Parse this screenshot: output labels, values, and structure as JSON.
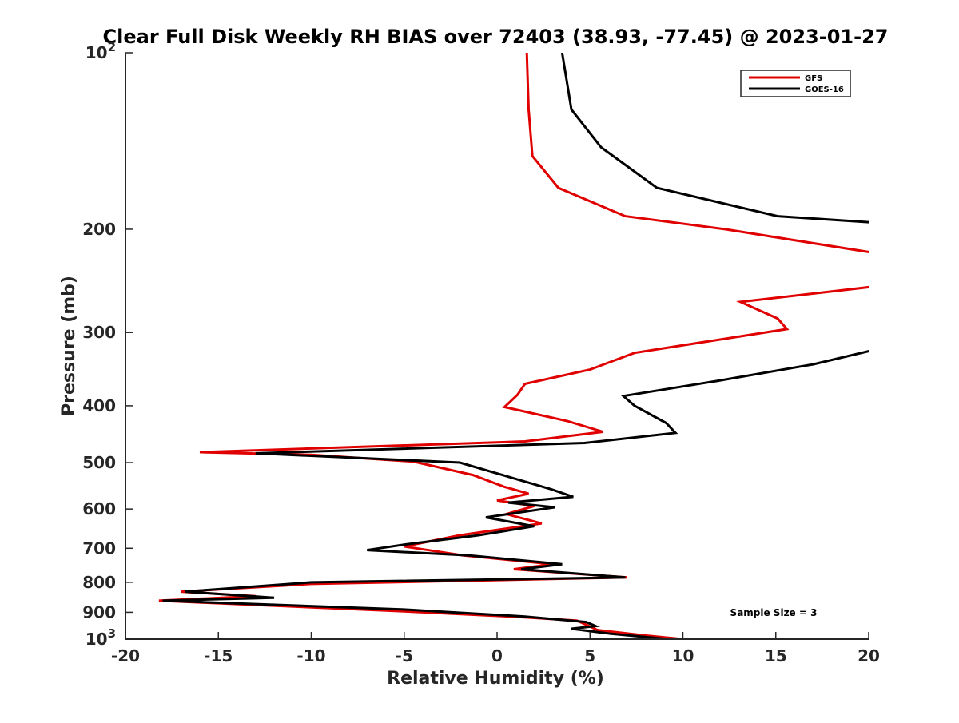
{
  "chart_data": {
    "type": "line",
    "title": "Clear Full Disk Weekly RH BIAS over 72403 (38.93, -77.45) @ 2023-01-27",
    "xlabel": "Relative Humidity (%)",
    "ylabel": "Pressure (mb)",
    "xlim": [
      -20,
      20
    ],
    "ylim": [
      100,
      1000
    ],
    "yscale": "log",
    "y_reversed": true,
    "grid": false,
    "legend_position": "top-right",
    "xticks": [
      -20,
      -15,
      -10,
      -5,
      0,
      5,
      10,
      15,
      20
    ],
    "xtick_labels": [
      "-20",
      "-15",
      "-10",
      "-5",
      "0",
      "5",
      "10",
      "15",
      "20"
    ],
    "yticks": [
      100,
      200,
      300,
      400,
      500,
      600,
      700,
      800,
      900,
      1000
    ],
    "ytick_labels": [
      {
        "base": "10",
        "exp": "2"
      },
      {
        "base": "200",
        "exp": ""
      },
      {
        "base": "300",
        "exp": ""
      },
      {
        "base": "400",
        "exp": ""
      },
      {
        "base": "500",
        "exp": ""
      },
      {
        "base": "600",
        "exp": ""
      },
      {
        "base": "700",
        "exp": ""
      },
      {
        "base": "800",
        "exp": ""
      },
      {
        "base": "900",
        "exp": ""
      },
      {
        "base": "10",
        "exp": "3"
      }
    ],
    "annotation": "Sample Size = 3",
    "series": [
      {
        "name": "GFS",
        "color": "#e00000",
        "points": [
          [
            1.6,
            100
          ],
          [
            1.7,
            125
          ],
          [
            1.9,
            150
          ],
          [
            3.3,
            170
          ],
          [
            6.9,
            190
          ],
          [
            12.3,
            200
          ],
          [
            20.5,
            220
          ],
          [
            20.5,
            250
          ],
          [
            13.1,
            266
          ],
          [
            15.1,
            284
          ],
          [
            15.6,
            296
          ],
          [
            7.4,
            325
          ],
          [
            5.0,
            347
          ],
          [
            1.5,
            367
          ],
          [
            1.1,
            383
          ],
          [
            0.4,
            402
          ],
          [
            3.8,
            425
          ],
          [
            5.7,
            443
          ],
          [
            1.5,
            460
          ],
          [
            -16.0,
            480
          ],
          [
            -10.0,
            485
          ],
          [
            -4.5,
            498
          ],
          [
            -1.3,
            525
          ],
          [
            0.4,
            550
          ],
          [
            1.7,
            565
          ],
          [
            0.0,
            580
          ],
          [
            2.0,
            593
          ],
          [
            0.5,
            612
          ],
          [
            2.4,
            635
          ],
          [
            -2.0,
            665
          ],
          [
            -5.0,
            695
          ],
          [
            -1.8,
            720
          ],
          [
            3.0,
            745
          ],
          [
            0.9,
            760
          ],
          [
            7.0,
            785
          ],
          [
            -10.0,
            805
          ],
          [
            -17.0,
            830
          ],
          [
            -13.0,
            845
          ],
          [
            -18.2,
            860
          ],
          [
            -5.0,
            897
          ],
          [
            1.5,
            918
          ],
          [
            4.3,
            930
          ],
          [
            4.8,
            945
          ],
          [
            5.4,
            965
          ],
          [
            7.9,
            985
          ],
          [
            10.0,
            1000
          ]
        ]
      },
      {
        "name": "GOES-16",
        "color": "#000000",
        "points": [
          [
            3.5,
            100
          ],
          [
            4.0,
            125
          ],
          [
            5.6,
            145
          ],
          [
            8.6,
            170
          ],
          [
            15.1,
            190
          ],
          [
            20.5,
            195
          ],
          [
            20.5,
            320
          ],
          [
            17.0,
            340
          ],
          [
            11.8,
            363
          ],
          [
            6.8,
            385
          ],
          [
            7.4,
            400
          ],
          [
            9.1,
            428
          ],
          [
            9.6,
            445
          ],
          [
            4.7,
            463
          ],
          [
            -13.0,
            482
          ],
          [
            -2.0,
            500
          ],
          [
            2.9,
            555
          ],
          [
            4.1,
            572
          ],
          [
            0.6,
            585
          ],
          [
            3.1,
            596
          ],
          [
            -0.6,
            620
          ],
          [
            2.0,
            642
          ],
          [
            -1.0,
            665
          ],
          [
            -5.0,
            690
          ],
          [
            -7.0,
            705
          ],
          [
            -1.5,
            720
          ],
          [
            3.5,
            745
          ],
          [
            1.3,
            760
          ],
          [
            6.9,
            785
          ],
          [
            -10.0,
            800
          ],
          [
            -16.8,
            830
          ],
          [
            -12.0,
            850
          ],
          [
            -18.0,
            860
          ],
          [
            -5.0,
            890
          ],
          [
            1.5,
            915
          ],
          [
            4.8,
            935
          ],
          [
            5.3,
            950
          ],
          [
            4.0,
            960
          ],
          [
            6.0,
            978
          ],
          [
            9.2,
            1000
          ]
        ]
      }
    ]
  }
}
